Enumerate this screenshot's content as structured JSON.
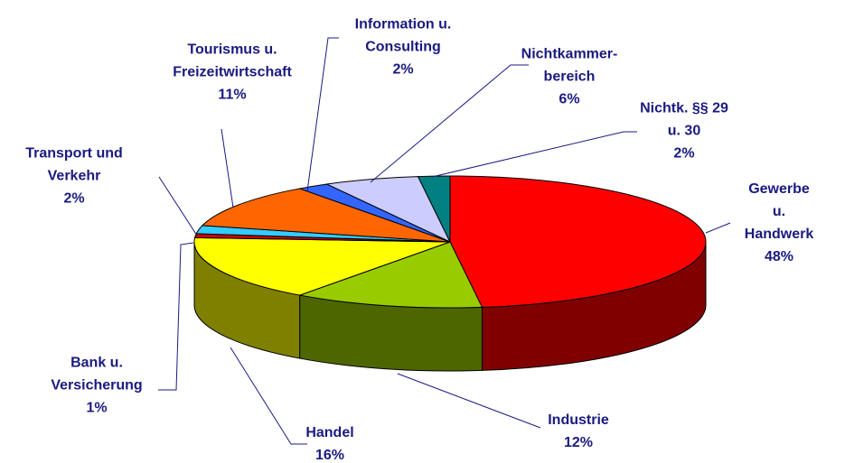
{
  "chart_data": {
    "type": "pie3d",
    "categories": [
      "Gewerbe u.\nHandwerk",
      "Industrie",
      "Handel",
      "Bank u.\nVersicherung",
      "Transport und\nVerkehr",
      "Tourismus u.\nFreizeitwirtschaft",
      "Information u.\nConsulting",
      "Nichtkammer-\nbereich",
      "Nichtk. §§ 29\nu. 30"
    ],
    "values": [
      48,
      12,
      16,
      1,
      2,
      11,
      2,
      6,
      2
    ],
    "value_labels": [
      "48%",
      "12%",
      "16%",
      "1%",
      "2%",
      "11%",
      "2%",
      "6%",
      "2%"
    ],
    "colors": [
      "#ff0000",
      "#99cc00",
      "#ffff00",
      "#cc0000",
      "#33ccff",
      "#ff6600",
      "#3366ff",
      "#ccccff",
      "#008080"
    ]
  }
}
